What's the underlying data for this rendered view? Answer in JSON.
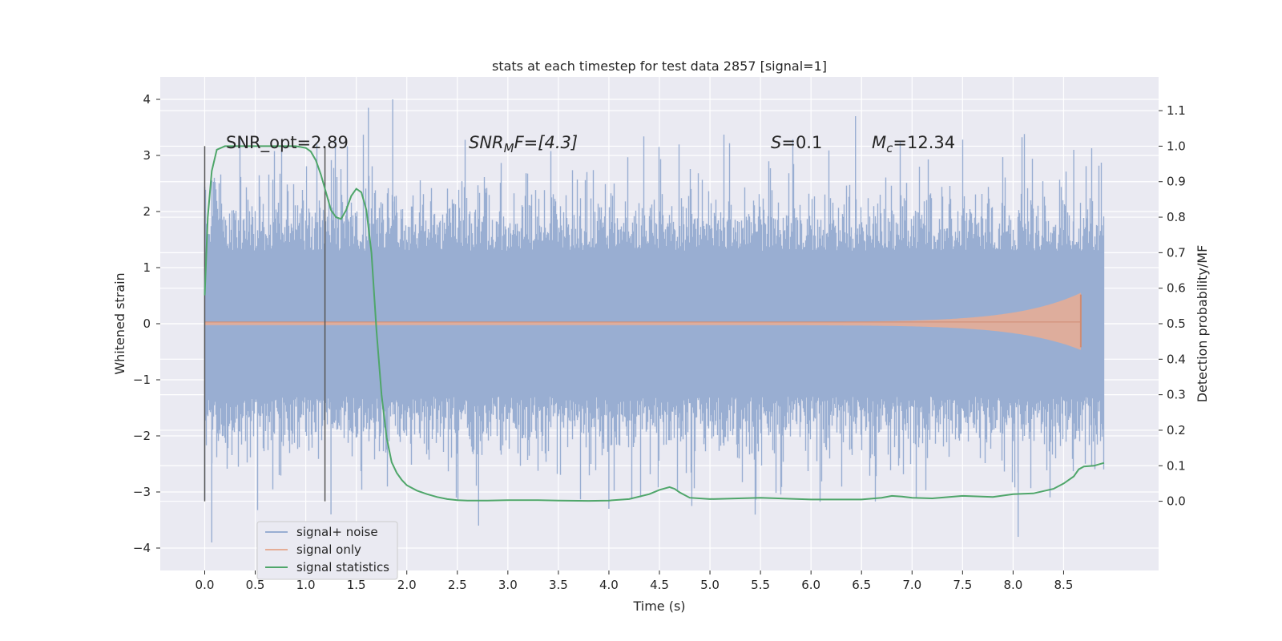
{
  "chart_data": {
    "type": "line",
    "title": "stats at each timestep for test data 2857 [signal=1]",
    "xlabel": "Time (s)",
    "ylabel": "Whitened strain",
    "y2label": "Detection probability/MF",
    "xlim": [
      -0.44,
      9.44
    ],
    "ylim": [
      -4.4,
      4.4
    ],
    "y2lim": [
      -0.195,
      1.195
    ],
    "xticks": [
      "0.0",
      "0.5",
      "1.0",
      "1.5",
      "2.0",
      "2.5",
      "3.0",
      "3.5",
      "4.0",
      "4.5",
      "5.0",
      "5.5",
      "6.0",
      "6.5",
      "7.0",
      "7.5",
      "8.0",
      "8.5"
    ],
    "yticks": [
      "−4",
      "−3",
      "−2",
      "−1",
      "0",
      "1",
      "2",
      "3",
      "4"
    ],
    "y2ticks": [
      "0.0",
      "0.1",
      "0.2",
      "0.3",
      "0.4",
      "0.5",
      "0.6",
      "0.7",
      "0.8",
      "0.9",
      "1.0",
      "1.1"
    ],
    "grid": true,
    "legend_position": "lower-left",
    "annotations": {
      "snr_opt": "SNR_opt=2.89",
      "snr_mf_main": "SNR",
      "snr_mf_sub": "M",
      "snr_mf_rest": "F=[4.3]",
      "s_main": "S",
      "s_rest": "=0.1",
      "mc_main": "M",
      "mc_sub": "c",
      "mc_rest": "=12.34"
    },
    "vertical_lines_x": [
      0.0,
      1.19
    ],
    "series": [
      {
        "name": "signal+ noise",
        "color": "#99aed2",
        "x_range": [
          0.0,
          8.9
        ],
        "note_values": "dense noise, typical amplitude ±1.3, peaks up to ±4"
      },
      {
        "name": "signal only",
        "color": "#e5ad96",
        "chirp_end_x": 8.67,
        "chirp_peak_amplitude": 0.52
      },
      {
        "name": "signal statistics",
        "color": "#4fa66a",
        "x": [
          0.0,
          0.03,
          0.07,
          0.12,
          0.2,
          0.3,
          0.5,
          0.7,
          0.9,
          1.0,
          1.05,
          1.1,
          1.15,
          1.2,
          1.25,
          1.3,
          1.35,
          1.4,
          1.45,
          1.5,
          1.55,
          1.6,
          1.65,
          1.7,
          1.75,
          1.8,
          1.85,
          1.9,
          1.95,
          2.0,
          2.1,
          2.2,
          2.3,
          2.4,
          2.5,
          2.6,
          2.8,
          3.0,
          3.3,
          3.5,
          3.8,
          4.0,
          4.2,
          4.4,
          4.5,
          4.6,
          4.65,
          4.7,
          4.8,
          5.0,
          5.5,
          6.0,
          6.5,
          6.7,
          6.8,
          6.9,
          7.0,
          7.2,
          7.5,
          7.8,
          8.0,
          8.2,
          8.4,
          8.5,
          8.6,
          8.65,
          8.7,
          8.8,
          8.9
        ],
        "y": [
          0.58,
          0.8,
          0.93,
          0.99,
          1.0,
          1.0,
          1.0,
          1.0,
          1.0,
          0.995,
          0.985,
          0.96,
          0.92,
          0.87,
          0.82,
          0.8,
          0.795,
          0.82,
          0.86,
          0.88,
          0.87,
          0.82,
          0.7,
          0.48,
          0.3,
          0.18,
          0.11,
          0.08,
          0.06,
          0.045,
          0.03,
          0.02,
          0.012,
          0.006,
          0.003,
          0.002,
          0.002,
          0.003,
          0.003,
          0.002,
          0.001,
          0.002,
          0.006,
          0.02,
          0.032,
          0.04,
          0.035,
          0.025,
          0.01,
          0.006,
          0.01,
          0.005,
          0.005,
          0.01,
          0.015,
          0.013,
          0.01,
          0.008,
          0.015,
          0.012,
          0.02,
          0.022,
          0.035,
          0.05,
          0.07,
          0.09,
          0.098,
          0.1,
          0.108
        ]
      }
    ]
  }
}
